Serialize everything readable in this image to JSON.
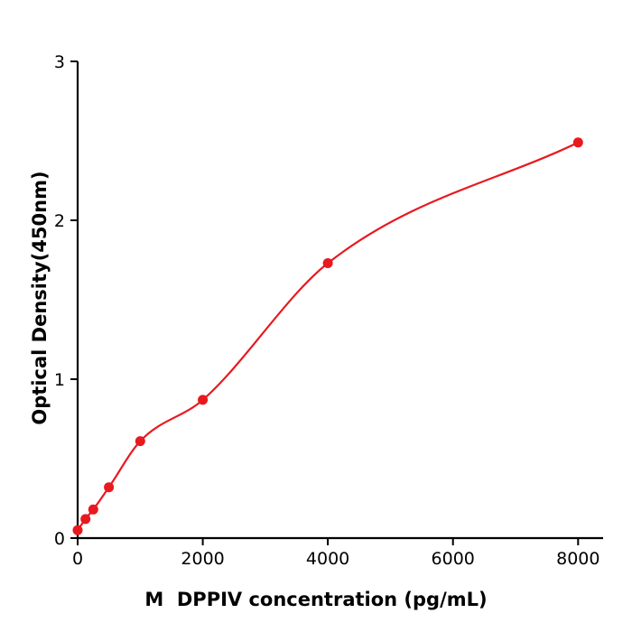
{
  "chart_data": {
    "type": "scatter",
    "title": "",
    "xlabel": "M  DPPIV concentration (pg/mL)",
    "ylabel": "Optical Density(450nm)",
    "x": [
      0,
      125,
      250,
      500,
      1000,
      2000,
      4000,
      8000
    ],
    "y": [
      0.05,
      0.12,
      0.18,
      0.32,
      0.61,
      0.87,
      1.73,
      2.49
    ],
    "fit": "smooth monotone curve through points",
    "x_ticks": [
      0,
      2000,
      4000,
      6000,
      8000
    ],
    "y_ticks": [
      0,
      1,
      2,
      3
    ],
    "xlim": [
      0,
      8400
    ],
    "ylim": [
      0,
      3
    ],
    "point_color": "#e8191f",
    "line_color": "#e8191f",
    "axis_color": "#000000",
    "grid": "off",
    "legend": "none"
  }
}
